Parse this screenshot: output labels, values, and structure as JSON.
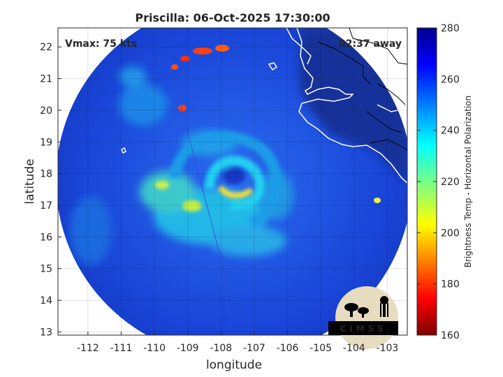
{
  "title": "Priscilla: 06-Oct-2025 17:30:00",
  "vmax_label": "Vmax: 75 kts",
  "time_away_label": "02:37 away",
  "xlabel": "longitude",
  "ylabel": "latitude",
  "colorbar_label": "Brightness Temp - Horizontal Polarization",
  "logo_text": "CIMSS",
  "colors": {
    "background_sea": "#1a45d8",
    "land_dark": "#12309a",
    "eye": "#ffe033",
    "coastline": "#ffffff"
  },
  "x_ticks": [
    "-112",
    "-111",
    "-110",
    "-109",
    "-108",
    "-107",
    "-106",
    "-105",
    "-104",
    "-103"
  ],
  "y_ticks": [
    "13",
    "14",
    "15",
    "16",
    "17",
    "18",
    "19",
    "20",
    "21",
    "22"
  ],
  "colorbar_ticks": [
    "160",
    "180",
    "200",
    "220",
    "240",
    "260",
    "280"
  ],
  "map_data": {
    "xlim": [
      -112.9,
      -102.4
    ],
    "ylim": [
      12.9,
      22.6
    ],
    "storm_center": {
      "lon": -107.9,
      "lat": 17.7
    },
    "colorbar_range": [
      160,
      280
    ],
    "colormap": "jet",
    "grid": true
  }
}
